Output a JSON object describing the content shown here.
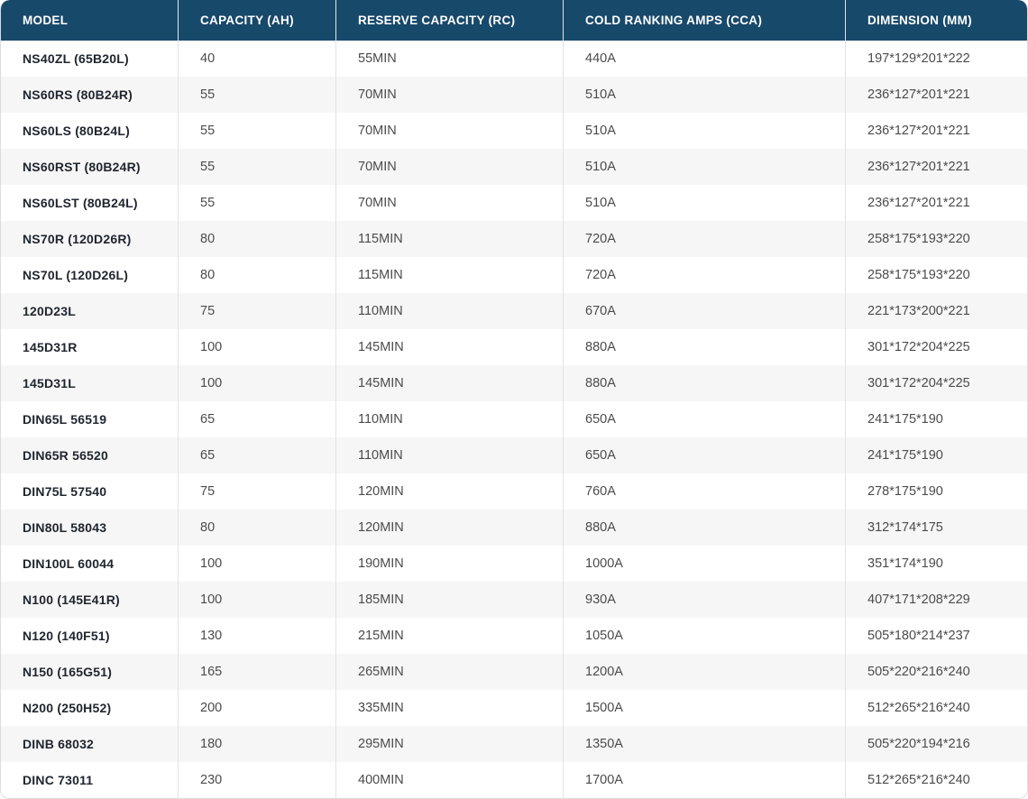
{
  "table": {
    "columns": [
      "MODEL",
      "CAPACITY (AH)",
      "RESERVE CAPACITY (RC)",
      "COLD RANKING AMPS (CCA)",
      "DIMENSION (MM)"
    ],
    "rows": [
      {
        "model": "NS40ZL (65B20L)",
        "capacity_ah": "40",
        "reserve_capacity": "55MIN",
        "cca": "440A",
        "dimension_mm": "197*129*201*222"
      },
      {
        "model": "NS60RS (80B24R)",
        "capacity_ah": "55",
        "reserve_capacity": "70MIN",
        "cca": "510A",
        "dimension_mm": "236*127*201*221"
      },
      {
        "model": "NS60LS (80B24L)",
        "capacity_ah": "55",
        "reserve_capacity": "70MIN",
        "cca": "510A",
        "dimension_mm": "236*127*201*221"
      },
      {
        "model": "NS60RST (80B24R)",
        "capacity_ah": "55",
        "reserve_capacity": "70MIN",
        "cca": "510A",
        "dimension_mm": "236*127*201*221"
      },
      {
        "model": "NS60LST (80B24L)",
        "capacity_ah": "55",
        "reserve_capacity": "70MIN",
        "cca": "510A",
        "dimension_mm": "236*127*201*221"
      },
      {
        "model": "NS70R (120D26R)",
        "capacity_ah": "80",
        "reserve_capacity": "115MIN",
        "cca": "720A",
        "dimension_mm": "258*175*193*220"
      },
      {
        "model": "NS70L (120D26L)",
        "capacity_ah": "80",
        "reserve_capacity": "115MIN",
        "cca": "720A",
        "dimension_mm": "258*175*193*220"
      },
      {
        "model": "120D23L",
        "capacity_ah": "75",
        "reserve_capacity": "110MIN",
        "cca": "670A",
        "dimension_mm": "221*173*200*221"
      },
      {
        "model": "145D31R",
        "capacity_ah": "100",
        "reserve_capacity": "145MIN",
        "cca": "880A",
        "dimension_mm": "301*172*204*225"
      },
      {
        "model": "145D31L",
        "capacity_ah": "100",
        "reserve_capacity": "145MIN",
        "cca": "880A",
        "dimension_mm": "301*172*204*225"
      },
      {
        "model": "DIN65L 56519",
        "capacity_ah": "65",
        "reserve_capacity": "110MIN",
        "cca": "650A",
        "dimension_mm": "241*175*190"
      },
      {
        "model": "DIN65R 56520",
        "capacity_ah": "65",
        "reserve_capacity": "110MIN",
        "cca": "650A",
        "dimension_mm": "241*175*190"
      },
      {
        "model": "DIN75L 57540",
        "capacity_ah": "75",
        "reserve_capacity": "120MIN",
        "cca": "760A",
        "dimension_mm": "278*175*190"
      },
      {
        "model": "DIN80L 58043",
        "capacity_ah": "80",
        "reserve_capacity": "120MIN",
        "cca": "880A",
        "dimension_mm": "312*174*175"
      },
      {
        "model": "DIN100L 60044",
        "capacity_ah": "100",
        "reserve_capacity": "190MIN",
        "cca": "1000A",
        "dimension_mm": "351*174*190"
      },
      {
        "model": "N100 (145E41R)",
        "capacity_ah": "100",
        "reserve_capacity": "185MIN",
        "cca": "930A",
        "dimension_mm": "407*171*208*229"
      },
      {
        "model": "N120 (140F51)",
        "capacity_ah": "130",
        "reserve_capacity": "215MIN",
        "cca": "1050A",
        "dimension_mm": "505*180*214*237"
      },
      {
        "model": "N150 (165G51)",
        "capacity_ah": "165",
        "reserve_capacity": "265MIN",
        "cca": "1200A",
        "dimension_mm": "505*220*216*240"
      },
      {
        "model": "N200 (250H52)",
        "capacity_ah": "200",
        "reserve_capacity": "335MIN",
        "cca": "1500A",
        "dimension_mm": "512*265*216*240"
      },
      {
        "model": "DINB 68032",
        "capacity_ah": "180",
        "reserve_capacity": "295MIN",
        "cca": "1350A",
        "dimension_mm": "505*220*194*216"
      },
      {
        "model": "DINC 73011",
        "capacity_ah": "230",
        "reserve_capacity": "400MIN",
        "cca": "1700A",
        "dimension_mm": "512*265*216*240"
      }
    ]
  },
  "colors": {
    "header_bg": "#17496B",
    "header_text": "#FFFFFF",
    "row_alt_bg": "#F6F6F6",
    "divider": "#E3E3E3",
    "border_color": "#DCDCDC",
    "model_text": "#20262F",
    "cell_text": "#4B4B4B"
  }
}
